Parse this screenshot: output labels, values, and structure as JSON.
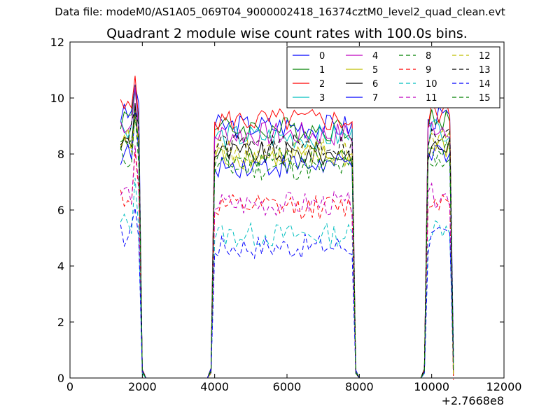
{
  "figure": {
    "suptitle": "Data file: modeM0/AS1A05_069T04_9000002418_16374cztM0_level2_quad_clean.evt"
  },
  "chart_data": {
    "type": "line",
    "title": "Quadrant 2 module wise count rates with 100.0s bins.",
    "xlabel": "",
    "ylabel": "",
    "x_offset_label": "+2.7668e8",
    "xlim": [
      0,
      12000
    ],
    "ylim": [
      0,
      12
    ],
    "xticks": [
      0,
      2000,
      4000,
      6000,
      8000,
      10000,
      12000
    ],
    "yticks": [
      0,
      2,
      4,
      6,
      8,
      10,
      12
    ],
    "grid": false,
    "legend": {
      "placement": "top-right",
      "columns": 4
    },
    "x": [
      1400,
      1500,
      1600,
      1700,
      1800,
      1900,
      2000,
      2100,
      2200,
      2300,
      2400,
      2500,
      2600,
      2700,
      2800,
      2900,
      3000,
      3100,
      3200,
      3300,
      3400,
      3500,
      3600,
      3700,
      3800,
      3900,
      4000,
      4100,
      4200,
      4300,
      4400,
      4500,
      4600,
      4700,
      4800,
      4900,
      5000,
      5100,
      5200,
      5300,
      5400,
      5500,
      5600,
      5700,
      5800,
      5900,
      6000,
      6100,
      6200,
      6300,
      6400,
      6500,
      6600,
      6700,
      6800,
      6900,
      7000,
      7100,
      7200,
      7300,
      7400,
      7500,
      7600,
      7700,
      7800,
      7900,
      8000,
      8100,
      8200,
      8300,
      8400,
      8500,
      8600,
      8700,
      8800,
      8900,
      9000,
      9100,
      9200,
      9300,
      9400,
      9500,
      9600,
      9700,
      9800,
      9900,
      10000,
      10100,
      10200,
      10300,
      10400,
      10500,
      10600
    ],
    "segments": [
      [
        1400,
        2000
      ],
      [
        3900,
        7900
      ],
      [
        9800,
        10600
      ]
    ],
    "series": [
      {
        "name": "0",
        "color": "#0000ff",
        "dash": "solid",
        "level": 9.0
      },
      {
        "name": "1",
        "color": "#008000",
        "dash": "solid",
        "level": 8.9
      },
      {
        "name": "2",
        "color": "#ff0000",
        "dash": "solid",
        "level": 9.2
      },
      {
        "name": "3",
        "color": "#00bfbf",
        "dash": "solid",
        "level": 8.6
      },
      {
        "name": "4",
        "color": "#bf00bf",
        "dash": "solid",
        "level": 8.7
      },
      {
        "name": "5",
        "color": "#bfbf00",
        "dash": "solid",
        "level": 7.9
      },
      {
        "name": "6",
        "color": "#000000",
        "dash": "solid",
        "level": 8.0
      },
      {
        "name": "7",
        "color": "#0000ff",
        "dash": "solid",
        "level": 7.6
      },
      {
        "name": "8",
        "color": "#008000",
        "dash": "dashed",
        "level": 7.5
      },
      {
        "name": "9",
        "color": "#ff0000",
        "dash": "dashed",
        "level": 6.1
      },
      {
        "name": "10",
        "color": "#00bfbf",
        "dash": "dashed",
        "level": 5.1
      },
      {
        "name": "11",
        "color": "#bf00bf",
        "dash": "dashed",
        "level": 6.2
      },
      {
        "name": "12",
        "color": "#bfbf00",
        "dash": "dashed",
        "level": 8.1
      },
      {
        "name": "13",
        "color": "#000000",
        "dash": "dashed",
        "level": 8.3
      },
      {
        "name": "14",
        "color": "#0000ff",
        "dash": "dashed",
        "level": 4.7
      },
      {
        "name": "15",
        "color": "#008000",
        "dash": "dashed",
        "level": 7.8
      }
    ]
  }
}
